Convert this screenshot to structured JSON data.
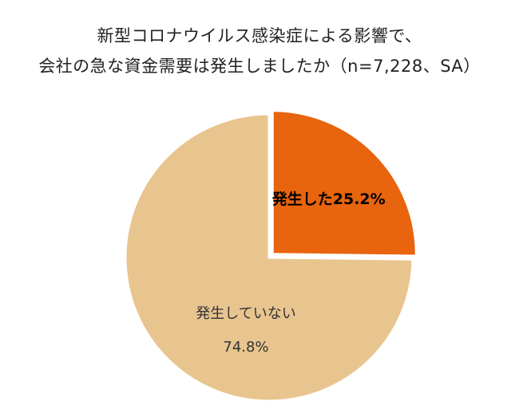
{
  "chart_data": {
    "type": "pie",
    "title_lines": [
      "新型コロナウイルス感染症による影響で、",
      "会社の急な資金需要は発生しましたか（n=7,228、SA）"
    ],
    "slices": [
      {
        "label": "発生した",
        "value_label": "25.2%",
        "value": 25.2,
        "color": "#E8640E",
        "exploded": true,
        "label_style": "bold-inline"
      },
      {
        "label": "発生していない",
        "value_label": "74.8%",
        "value": 74.8,
        "color": "#E8C58F",
        "exploded": false,
        "label_style": "two-line"
      }
    ],
    "start": "top",
    "direction": "clockwise"
  }
}
